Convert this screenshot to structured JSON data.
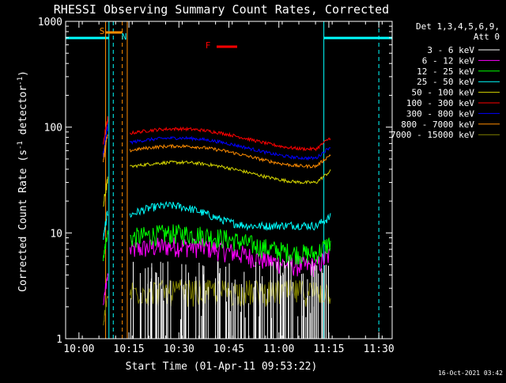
{
  "chart_data": {
    "type": "line",
    "title": "RHESSI Observing Summary Count Rates, Corrected",
    "xlabel": "Start Time (01-Apr-11 09:53:22)",
    "ylabel": "Corrected Count Rate (s⁻¹ detector⁻¹)",
    "ylabel_main": "Corrected Count Rate (s",
    "ylabel_sup1": "-1",
    "ylabel_mid": " detector",
    "ylabel_sup2": "-1",
    "ylabel_end": ")",
    "footer": "16-Oct-2021 03:42",
    "x_range_minutes": [
      9.933,
      11.567
    ],
    "xlim": [
      "09:56",
      "11:34"
    ],
    "ylim": [
      1,
      1000
    ],
    "yscale": "log",
    "grid": false,
    "x_ticks": [
      {
        "label": "10:00",
        "t": 10.0
      },
      {
        "label": "10:15",
        "t": 10.25
      },
      {
        "label": "10:30",
        "t": 10.5
      },
      {
        "label": "10:45",
        "t": 10.75
      },
      {
        "label": "11:00",
        "t": 11.0
      },
      {
        "label": "11:15",
        "t": 11.25
      },
      {
        "label": "11:30",
        "t": 11.5
      }
    ],
    "y_ticks": [
      {
        "label": "1",
        "v": 1
      },
      {
        "label": "10",
        "v": 10
      },
      {
        "label": "100",
        "v": 100
      },
      {
        "label": "1000",
        "v": 1000
      }
    ],
    "legend_header": [
      "Det 1,3,4,5,6,9,",
      "Att 0"
    ],
    "legend_placement": "right",
    "series": [
      {
        "name": "3 - 6 keV",
        "color": "#ffffff"
      },
      {
        "name": "6 - 12 keV",
        "color": "#ff00ff"
      },
      {
        "name": "12 - 25 keV",
        "color": "#00ff00"
      },
      {
        "name": "25 - 50 keV",
        "color": "#00ffff"
      },
      {
        "name": "50 - 100 keV",
        "color": "#d7d700"
      },
      {
        "name": "100 - 300 keV",
        "color": "#ff0000"
      },
      {
        "name": "300 - 800 keV",
        "color": "#0000ff"
      },
      {
        "name": "800 - 7000 keV",
        "color": "#ff8c00"
      },
      {
        "name": "7000 - 15000 keV",
        "color": "#808000"
      }
    ],
    "flags": [
      {
        "label": "S",
        "color": "#ff8c00"
      },
      {
        "label": "N",
        "color": "#00ffff"
      },
      {
        "label": "F",
        "color": "#ff0000"
      }
    ],
    "night_color": "#00ffff",
    "saa_color": "#ff8c00"
  }
}
